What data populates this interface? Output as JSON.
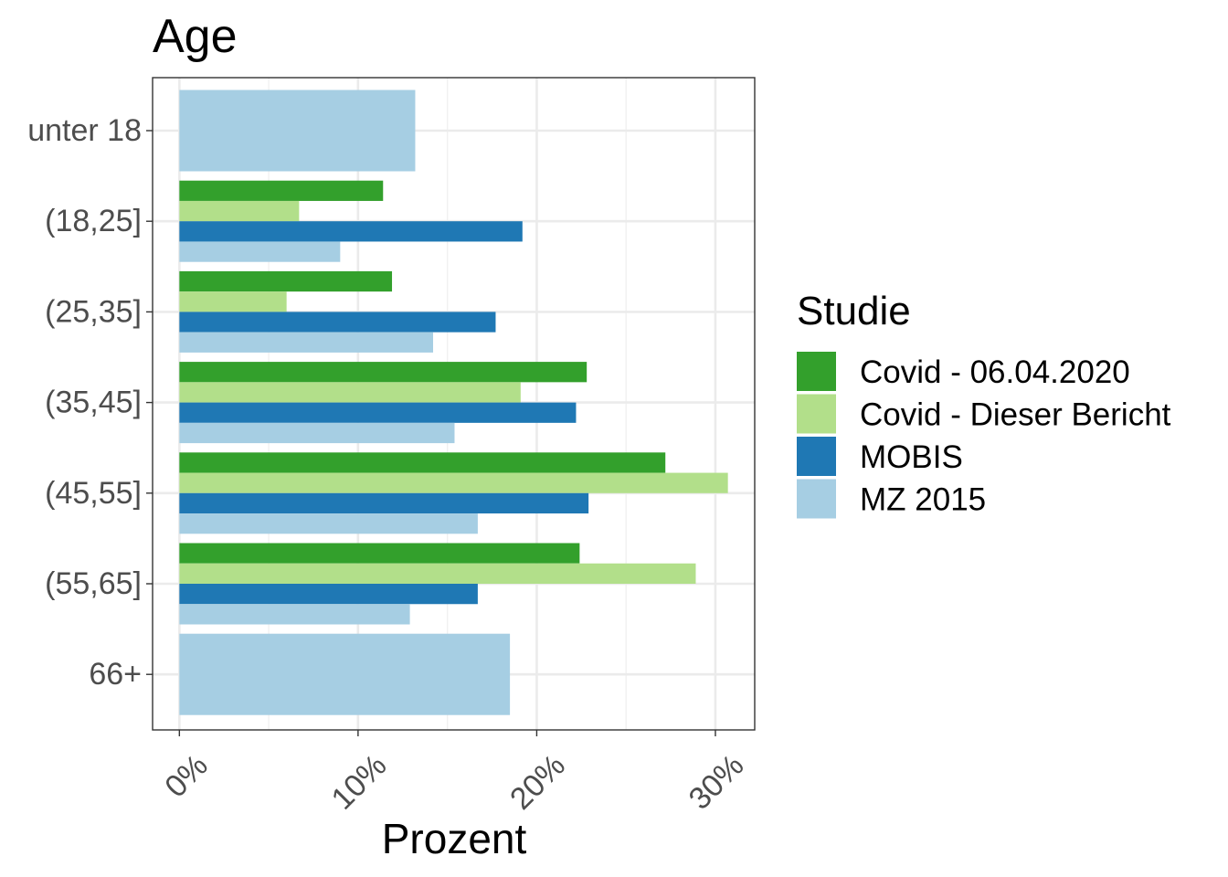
{
  "chart_data": {
    "type": "bar",
    "orientation": "horizontal",
    "title": "Age",
    "xlabel": "Prozent",
    "ylabel": "",
    "xlim": [
      -0.015,
      0.322
    ],
    "x_ticks": [
      0,
      0.1,
      0.2,
      0.3
    ],
    "x_tick_labels": [
      "0%",
      "10%",
      "20%",
      "30%"
    ],
    "categories": [
      "unter 18",
      "(18,25]",
      "(25,35]",
      "(35,45]",
      "(45,55]",
      "(55,65]",
      "66+"
    ],
    "legend": {
      "title": "Studie",
      "position": "right"
    },
    "grid": true,
    "series": [
      {
        "name": "Covid - 06.04.2020",
        "color": "#33a02c",
        "values": [
          null,
          0.114,
          0.119,
          0.228,
          0.272,
          0.224,
          null
        ]
      },
      {
        "name": "Covid - Dieser Bericht",
        "color": "#b2df8a",
        "values": [
          null,
          0.067,
          0.06,
          0.191,
          0.307,
          0.289,
          null
        ]
      },
      {
        "name": "MOBIS",
        "color": "#1f78b4",
        "values": [
          null,
          0.192,
          0.177,
          0.222,
          0.229,
          0.167,
          null
        ]
      },
      {
        "name": "MZ 2015",
        "color": "#a6cee3",
        "values": [
          0.132,
          0.09,
          0.142,
          0.154,
          0.167,
          0.129,
          0.185
        ]
      }
    ]
  }
}
